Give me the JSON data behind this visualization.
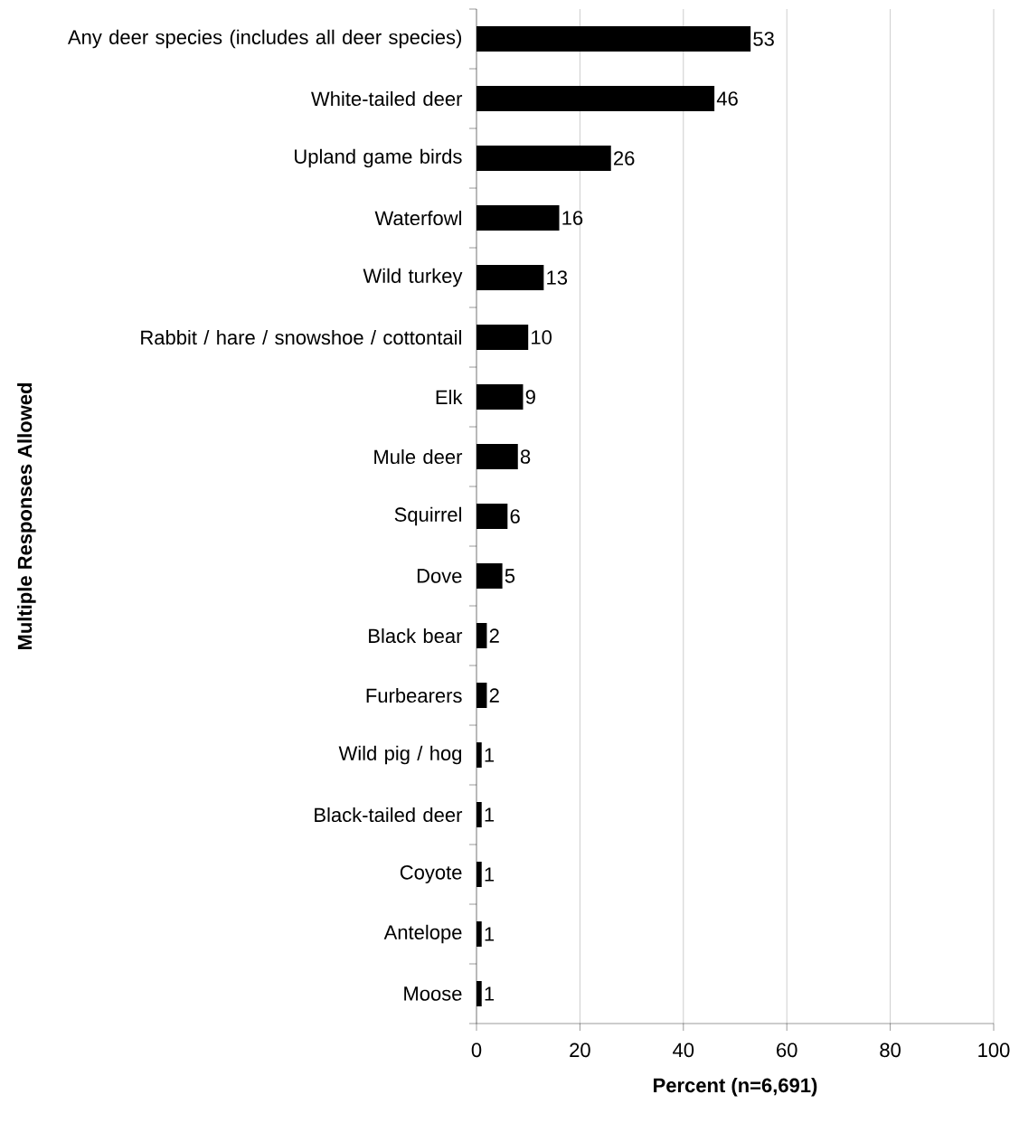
{
  "chart_data": {
    "type": "bar",
    "orientation": "horizontal",
    "xlabel": "Percent (n=6,691)",
    "ylabel": "Multiple Responses Allowed",
    "categories": [
      "Any deer species (includes all deer species)",
      "White-tailed deer",
      "Upland game birds",
      "Waterfowl",
      "Wild turkey",
      "Rabbit / hare / snowshoe / cottontail",
      "Elk",
      "Mule deer",
      "Squirrel",
      "Dove",
      "Black bear",
      "Furbearers",
      "Wild pig / hog",
      "Black-tailed deer",
      "Coyote",
      "Antelope",
      "Moose"
    ],
    "values": [
      53,
      46,
      26,
      16,
      13,
      10,
      9,
      8,
      6,
      5,
      2,
      2,
      1,
      1,
      1,
      1,
      1
    ],
    "color": "#000000",
    "xlim": [
      0,
      100
    ],
    "xticks": [
      0,
      20,
      40,
      60,
      80,
      100
    ],
    "grid": "x",
    "data_labels": true
  }
}
